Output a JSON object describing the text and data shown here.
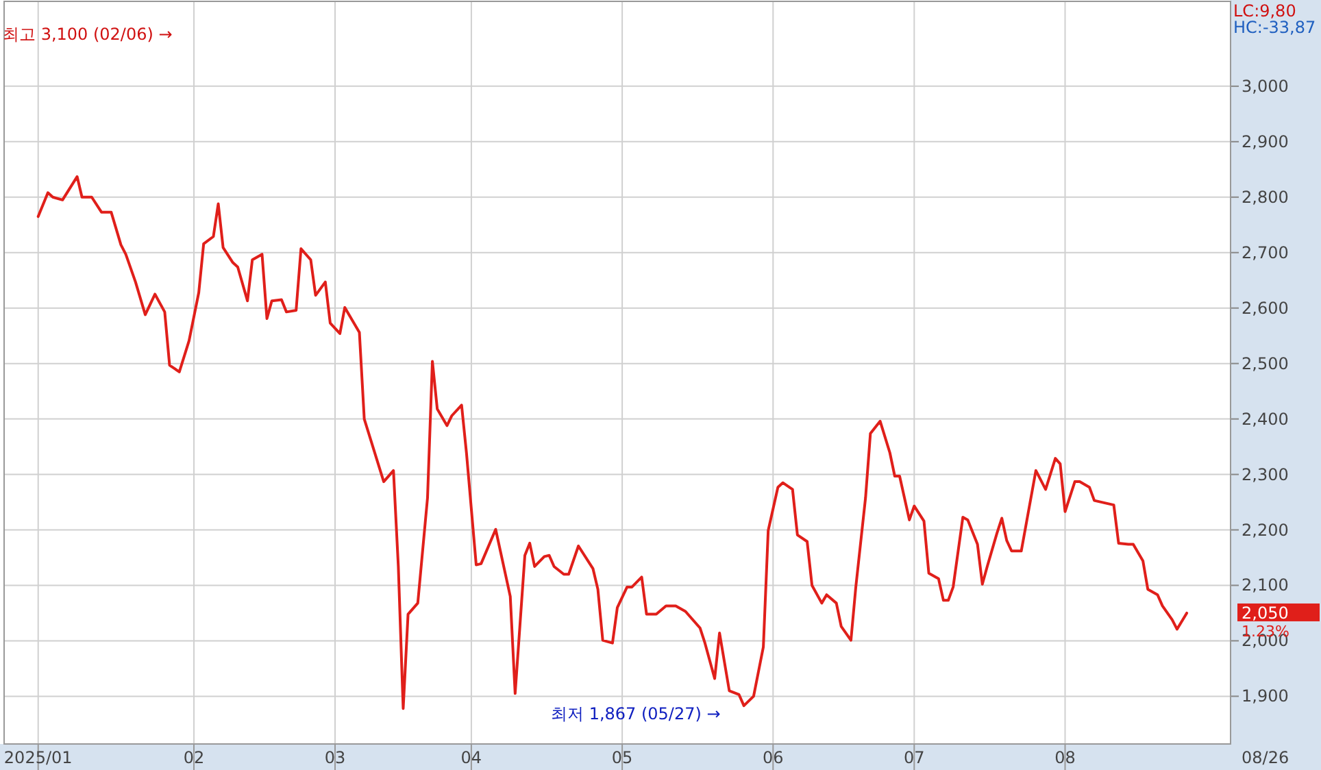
{
  "chart_data": {
    "type": "line",
    "x": [
      "2025-01-02",
      "2025-01-04",
      "2025-01-05",
      "2025-01-07",
      "2025-01-10",
      "2025-01-11",
      "2025-01-13",
      "2025-01-15",
      "2025-01-17",
      "2025-01-19",
      "2025-01-20",
      "2025-01-22",
      "2025-01-24",
      "2025-01-26",
      "2025-01-28",
      "2025-01-29",
      "2025-01-31",
      "2025-02-02",
      "2025-02-04",
      "2025-02-05",
      "2025-02-07",
      "2025-02-08",
      "2025-02-09",
      "2025-02-11",
      "2025-02-12",
      "2025-02-14",
      "2025-02-15",
      "2025-02-17",
      "2025-02-18",
      "2025-02-19",
      "2025-02-21",
      "2025-02-22",
      "2025-02-24",
      "2025-02-25",
      "2025-02-27",
      "2025-02-28",
      "2025-03-02",
      "2025-03-03",
      "2025-03-05",
      "2025-03-06",
      "2025-03-07",
      "2025-03-09",
      "2025-03-10",
      "2025-03-14",
      "2025-03-16",
      "2025-03-17",
      "2025-03-18",
      "2025-03-19",
      "2025-03-21",
      "2025-03-23",
      "2025-03-24",
      "2025-03-25",
      "2025-03-27",
      "2025-03-28",
      "2025-03-30",
      "2025-03-31",
      "2025-04-02",
      "2025-04-03",
      "2025-04-06",
      "2025-04-09",
      "2025-04-10",
      "2025-04-12",
      "2025-04-13",
      "2025-04-14",
      "2025-04-16",
      "2025-04-17",
      "2025-04-18",
      "2025-04-20",
      "2025-04-21",
      "2025-04-23",
      "2025-04-26",
      "2025-04-27",
      "2025-04-28",
      "2025-04-30",
      "2025-05-01",
      "2025-05-03",
      "2025-05-04",
      "2025-05-06",
      "2025-05-07",
      "2025-05-09",
      "2025-05-11",
      "2025-05-13",
      "2025-05-15",
      "2025-05-18",
      "2025-05-19",
      "2025-05-21",
      "2025-05-22",
      "2025-05-24",
      "2025-05-26",
      "2025-05-27",
      "2025-05-29",
      "2025-05-31",
      "2025-06-01",
      "2025-06-03",
      "2025-06-04",
      "2025-06-06",
      "2025-06-07",
      "2025-06-09",
      "2025-06-10",
      "2025-06-12",
      "2025-06-13",
      "2025-06-15",
      "2025-06-16",
      "2025-06-18",
      "2025-06-19",
      "2025-06-21",
      "2025-06-22",
      "2025-06-24",
      "2025-06-26",
      "2025-06-27",
      "2025-06-28",
      "2025-06-30",
      "2025-07-01",
      "2025-07-03",
      "2025-07-04",
      "2025-07-06",
      "2025-07-07",
      "2025-07-08",
      "2025-07-09",
      "2025-07-11",
      "2025-07-12",
      "2025-07-14",
      "2025-07-15",
      "2025-07-16",
      "2025-07-18",
      "2025-07-19",
      "2025-07-20",
      "2025-07-21",
      "2025-07-23",
      "2025-07-26",
      "2025-07-28",
      "2025-07-30",
      "2025-07-31",
      "2025-08-01",
      "2025-08-03",
      "2025-08-04",
      "2025-08-06",
      "2025-08-07",
      "2025-08-11",
      "2025-08-12",
      "2025-08-14",
      "2025-08-15",
      "2025-08-17",
      "2025-08-18",
      "2025-08-20",
      "2025-08-21",
      "2025-08-23",
      "2025-08-24",
      "2025-08-26"
    ],
    "series": [
      {
        "color": "#e01f1a",
        "values": [
          2765,
          2808,
          2800,
          2795,
          2837,
          2800,
          2800,
          2773,
          2773,
          2714,
          2697,
          2647,
          2588,
          2625,
          2593,
          2497,
          2485,
          2541,
          2628,
          2716,
          2729,
          2788,
          2709,
          2682,
          2674,
          2613,
          2687,
          2697,
          2581,
          2613,
          2615,
          2593,
          2596,
          2707,
          2687,
          2623,
          2647,
          2573,
          2554,
          2601,
          2586,
          2556,
          2400,
          2287,
          2307,
          2134,
          1878,
          2048,
          2068,
          2258,
          2504,
          2418,
          2388,
          2406,
          2425,
          2339,
          2137,
          2139,
          2201,
          2080,
          1905,
          2154,
          2176,
          2134,
          2152,
          2154,
          2134,
          2120,
          2120,
          2171,
          2130,
          2093,
          2001,
          1996,
          2060,
          2097,
          2097,
          2115,
          2048,
          2048,
          2063,
          2063,
          2053,
          2023,
          1996,
          1932,
          2014,
          1910,
          1903,
          1883,
          1900,
          1989,
          2199,
          2277,
          2285,
          2273,
          2191,
          2179,
          2100,
          2068,
          2083,
          2068,
          2026,
          2001,
          2097,
          2258,
          2374,
          2396,
          2339,
          2297,
          2297,
          2218,
          2243,
          2216,
          2122,
          2112,
          2073,
          2073,
          2097,
          2223,
          2218,
          2174,
          2102,
          2134,
          2194,
          2221,
          2181,
          2162,
          2162,
          2307,
          2273,
          2329,
          2319,
          2233,
          2287,
          2287,
          2277,
          2253,
          2245,
          2176,
          2174,
          2174,
          2144,
          2093,
          2083,
          2063,
          2038,
          2021,
          2050
        ]
      }
    ],
    "xlim": [
      "2024-12-26",
      "2025-09-04"
    ],
    "xticks": [
      {
        "value": "2025-01-02",
        "label": "2025/01"
      },
      {
        "value": "2025-02-03",
        "label": "02"
      },
      {
        "value": "2025-03-04",
        "label": "03"
      },
      {
        "value": "2025-04-01",
        "label": "04"
      },
      {
        "value": "2025-05-02",
        "label": "05"
      },
      {
        "value": "2025-06-02",
        "label": "06"
      },
      {
        "value": "2025-07-01",
        "label": "07"
      },
      {
        "value": "2025-08-01",
        "label": "08"
      }
    ],
    "ylim": [
      1814,
      3153
    ],
    "yticks": [
      {
        "value": 1900,
        "label": "1,900"
      },
      {
        "value": 2000,
        "label": "2,000"
      },
      {
        "value": 2100,
        "label": "2,100"
      },
      {
        "value": 2200,
        "label": "2,200"
      },
      {
        "value": 2300,
        "label": "2,300"
      },
      {
        "value": 2400,
        "label": "2,400"
      },
      {
        "value": 2500,
        "label": "2,500"
      },
      {
        "value": 2600,
        "label": "2,600"
      },
      {
        "value": 2700,
        "label": "2,700"
      },
      {
        "value": 2800,
        "label": "2,800"
      },
      {
        "value": 2900,
        "label": "2,900"
      },
      {
        "value": 3000,
        "label": "3,000"
      }
    ],
    "grid": true,
    "line_style": "solid",
    "annotations": [
      "최고 3,100 (02/06) →",
      "최저 1,867 (05/27) →",
      "LC:9,80",
      "HC:-33,87",
      "2,050",
      "1.23%",
      "08/26"
    ]
  }
}
